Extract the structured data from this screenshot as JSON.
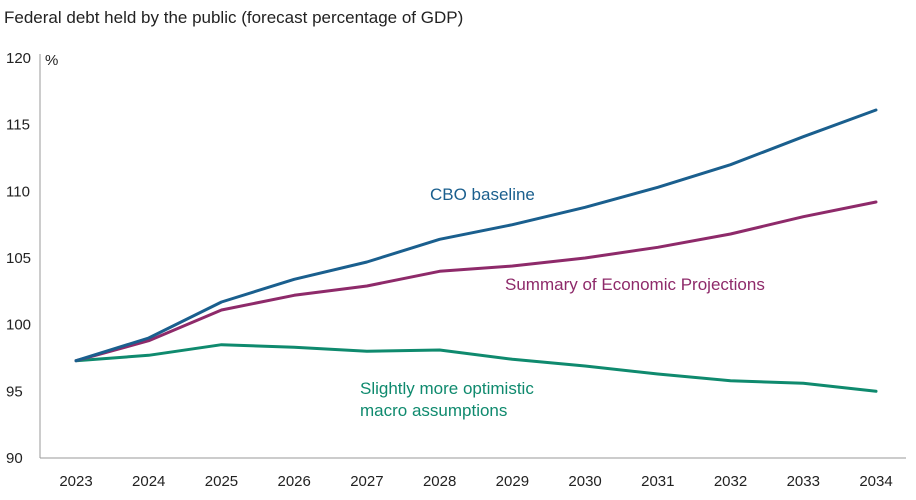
{
  "chart_data": {
    "type": "line",
    "title": "Federal debt held by the public (forecast percentage of GDP)",
    "ylabel": "%",
    "xlabel": "",
    "ylim": [
      90,
      120
    ],
    "yticks": [
      90,
      95,
      100,
      105,
      110,
      115,
      120
    ],
    "categories": [
      "2023",
      "2024",
      "2025",
      "2026",
      "2027",
      "2028",
      "2029",
      "2030",
      "2031",
      "2032",
      "2033",
      "2034"
    ],
    "series": [
      {
        "name": "CBO baseline",
        "label_lines": [
          "CBO baseline"
        ],
        "color": "#1a5f8e",
        "values": [
          97.3,
          99.0,
          101.7,
          103.4,
          104.7,
          106.4,
          107.5,
          108.8,
          110.3,
          112.0,
          114.1,
          116.1
        ]
      },
      {
        "name": "Summary of Economic Projections",
        "label_lines": [
          "Summary of Economic Projections"
        ],
        "color": "#8e2a6a",
        "values": [
          97.3,
          98.8,
          101.1,
          102.2,
          102.9,
          104.0,
          104.4,
          105.0,
          105.8,
          106.8,
          108.1,
          109.2
        ]
      },
      {
        "name": "Slightly more optimistic macro assumptions",
        "label_lines": [
          "Slightly more optimistic",
          "macro assumptions"
        ],
        "color": "#0f8a6e",
        "values": [
          97.3,
          97.7,
          98.5,
          98.3,
          98.0,
          98.1,
          97.4,
          96.9,
          96.3,
          95.8,
          95.6,
          95.0
        ]
      }
    ]
  }
}
